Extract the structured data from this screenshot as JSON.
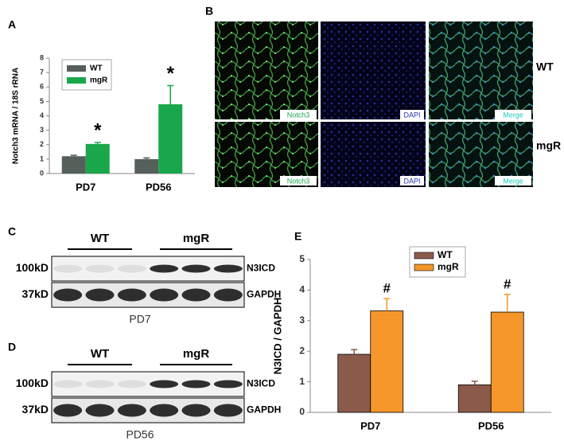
{
  "panels": {
    "a": "A",
    "b": "B",
    "c": "C",
    "d": "D",
    "e": "E"
  },
  "chart_data": [
    {
      "type": "bar",
      "ylabel": "Notch3 mRNA / 18S rRNA",
      "categories": [
        "PD7",
        "PD56"
      ],
      "series": [
        {
          "name": "WT",
          "color": "#55605a",
          "values": [
            1.2,
            1.0
          ],
          "errors": [
            0.07,
            0.08
          ]
        },
        {
          "name": "mgR",
          "color": "#1aa64a",
          "values": [
            2.05,
            4.8
          ],
          "errors": [
            0.1,
            1.3
          ],
          "annotations": [
            "*",
            "*"
          ]
        }
      ],
      "ylim": [
        0,
        8
      ],
      "yticks": [
        0,
        1,
        2,
        3,
        4,
        5,
        6,
        7,
        8
      ],
      "legend": "upper left"
    },
    {
      "type": "bar",
      "ylabel": "N3ICD / GAPDH",
      "categories": [
        "PD7",
        "PD56"
      ],
      "series": [
        {
          "name": "WT",
          "color": "#8b5a4a",
          "values": [
            1.9,
            0.9
          ],
          "errors": [
            0.15,
            0.12
          ]
        },
        {
          "name": "mgR",
          "color": "#f5962a",
          "values": [
            3.32,
            3.28
          ],
          "errors": [
            0.4,
            0.58
          ],
          "annotations": [
            "#",
            "#"
          ]
        }
      ],
      "ylim": [
        0,
        5
      ],
      "yticks": [
        0,
        1,
        2,
        3,
        4,
        5
      ],
      "legend": "upper center"
    }
  ],
  "microscopy": {
    "stains": [
      "Notch3",
      "DAPI",
      "Merge"
    ],
    "rows": [
      "WT",
      "mgR"
    ]
  },
  "blots": [
    {
      "groups": [
        "WT",
        "mgR"
      ],
      "bands": [
        {
          "size": "100kD",
          "protein": "N3ICD"
        },
        {
          "size": "37kD",
          "protein": "GAPDH"
        }
      ],
      "timepoint": "PD7"
    },
    {
      "groups": [
        "WT",
        "mgR"
      ],
      "bands": [
        {
          "size": "100kD",
          "protein": "N3ICD"
        },
        {
          "size": "37kD",
          "protein": "GAPDH"
        }
      ],
      "timepoint": "PD56"
    }
  ]
}
